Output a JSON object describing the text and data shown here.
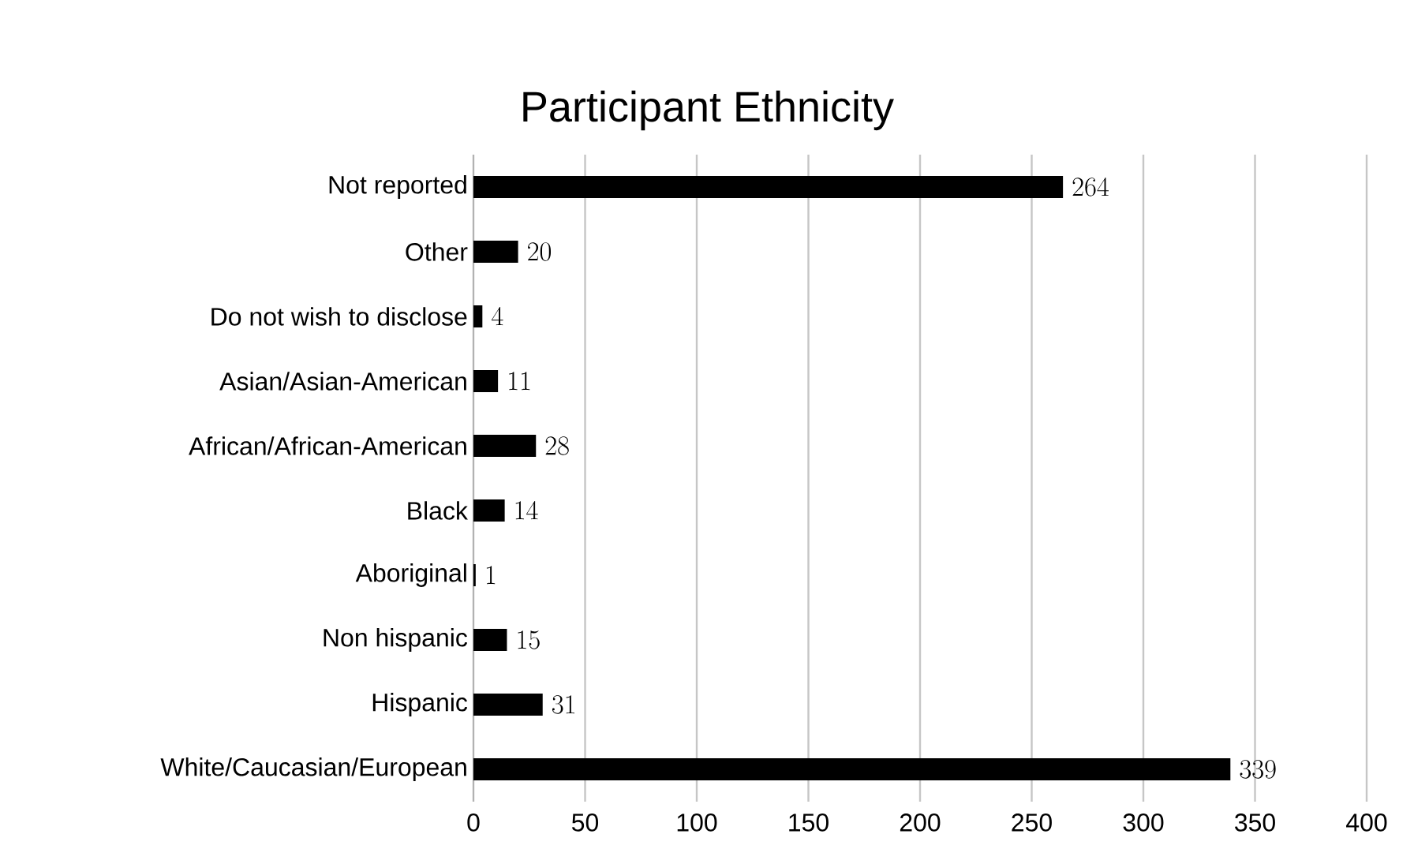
{
  "chart_data": {
    "type": "bar",
    "orientation": "horizontal",
    "title": "Participant Ethnicity",
    "categories": [
      "Not reported",
      "Other",
      "Do not wish to disclose",
      "Asian/Asian-American",
      "African/African-American",
      "Black",
      "Aboriginal",
      "Non hispanic",
      "Hispanic",
      "White/Caucasian/European"
    ],
    "values": [
      264,
      20,
      4,
      11,
      28,
      14,
      1,
      15,
      31,
      339
    ],
    "color": "#000000",
    "xlim": [
      0,
      400
    ],
    "xticks": [
      0,
      50,
      100,
      150,
      200,
      250,
      300,
      350,
      400
    ],
    "grid": "x",
    "data_labels": true
  }
}
